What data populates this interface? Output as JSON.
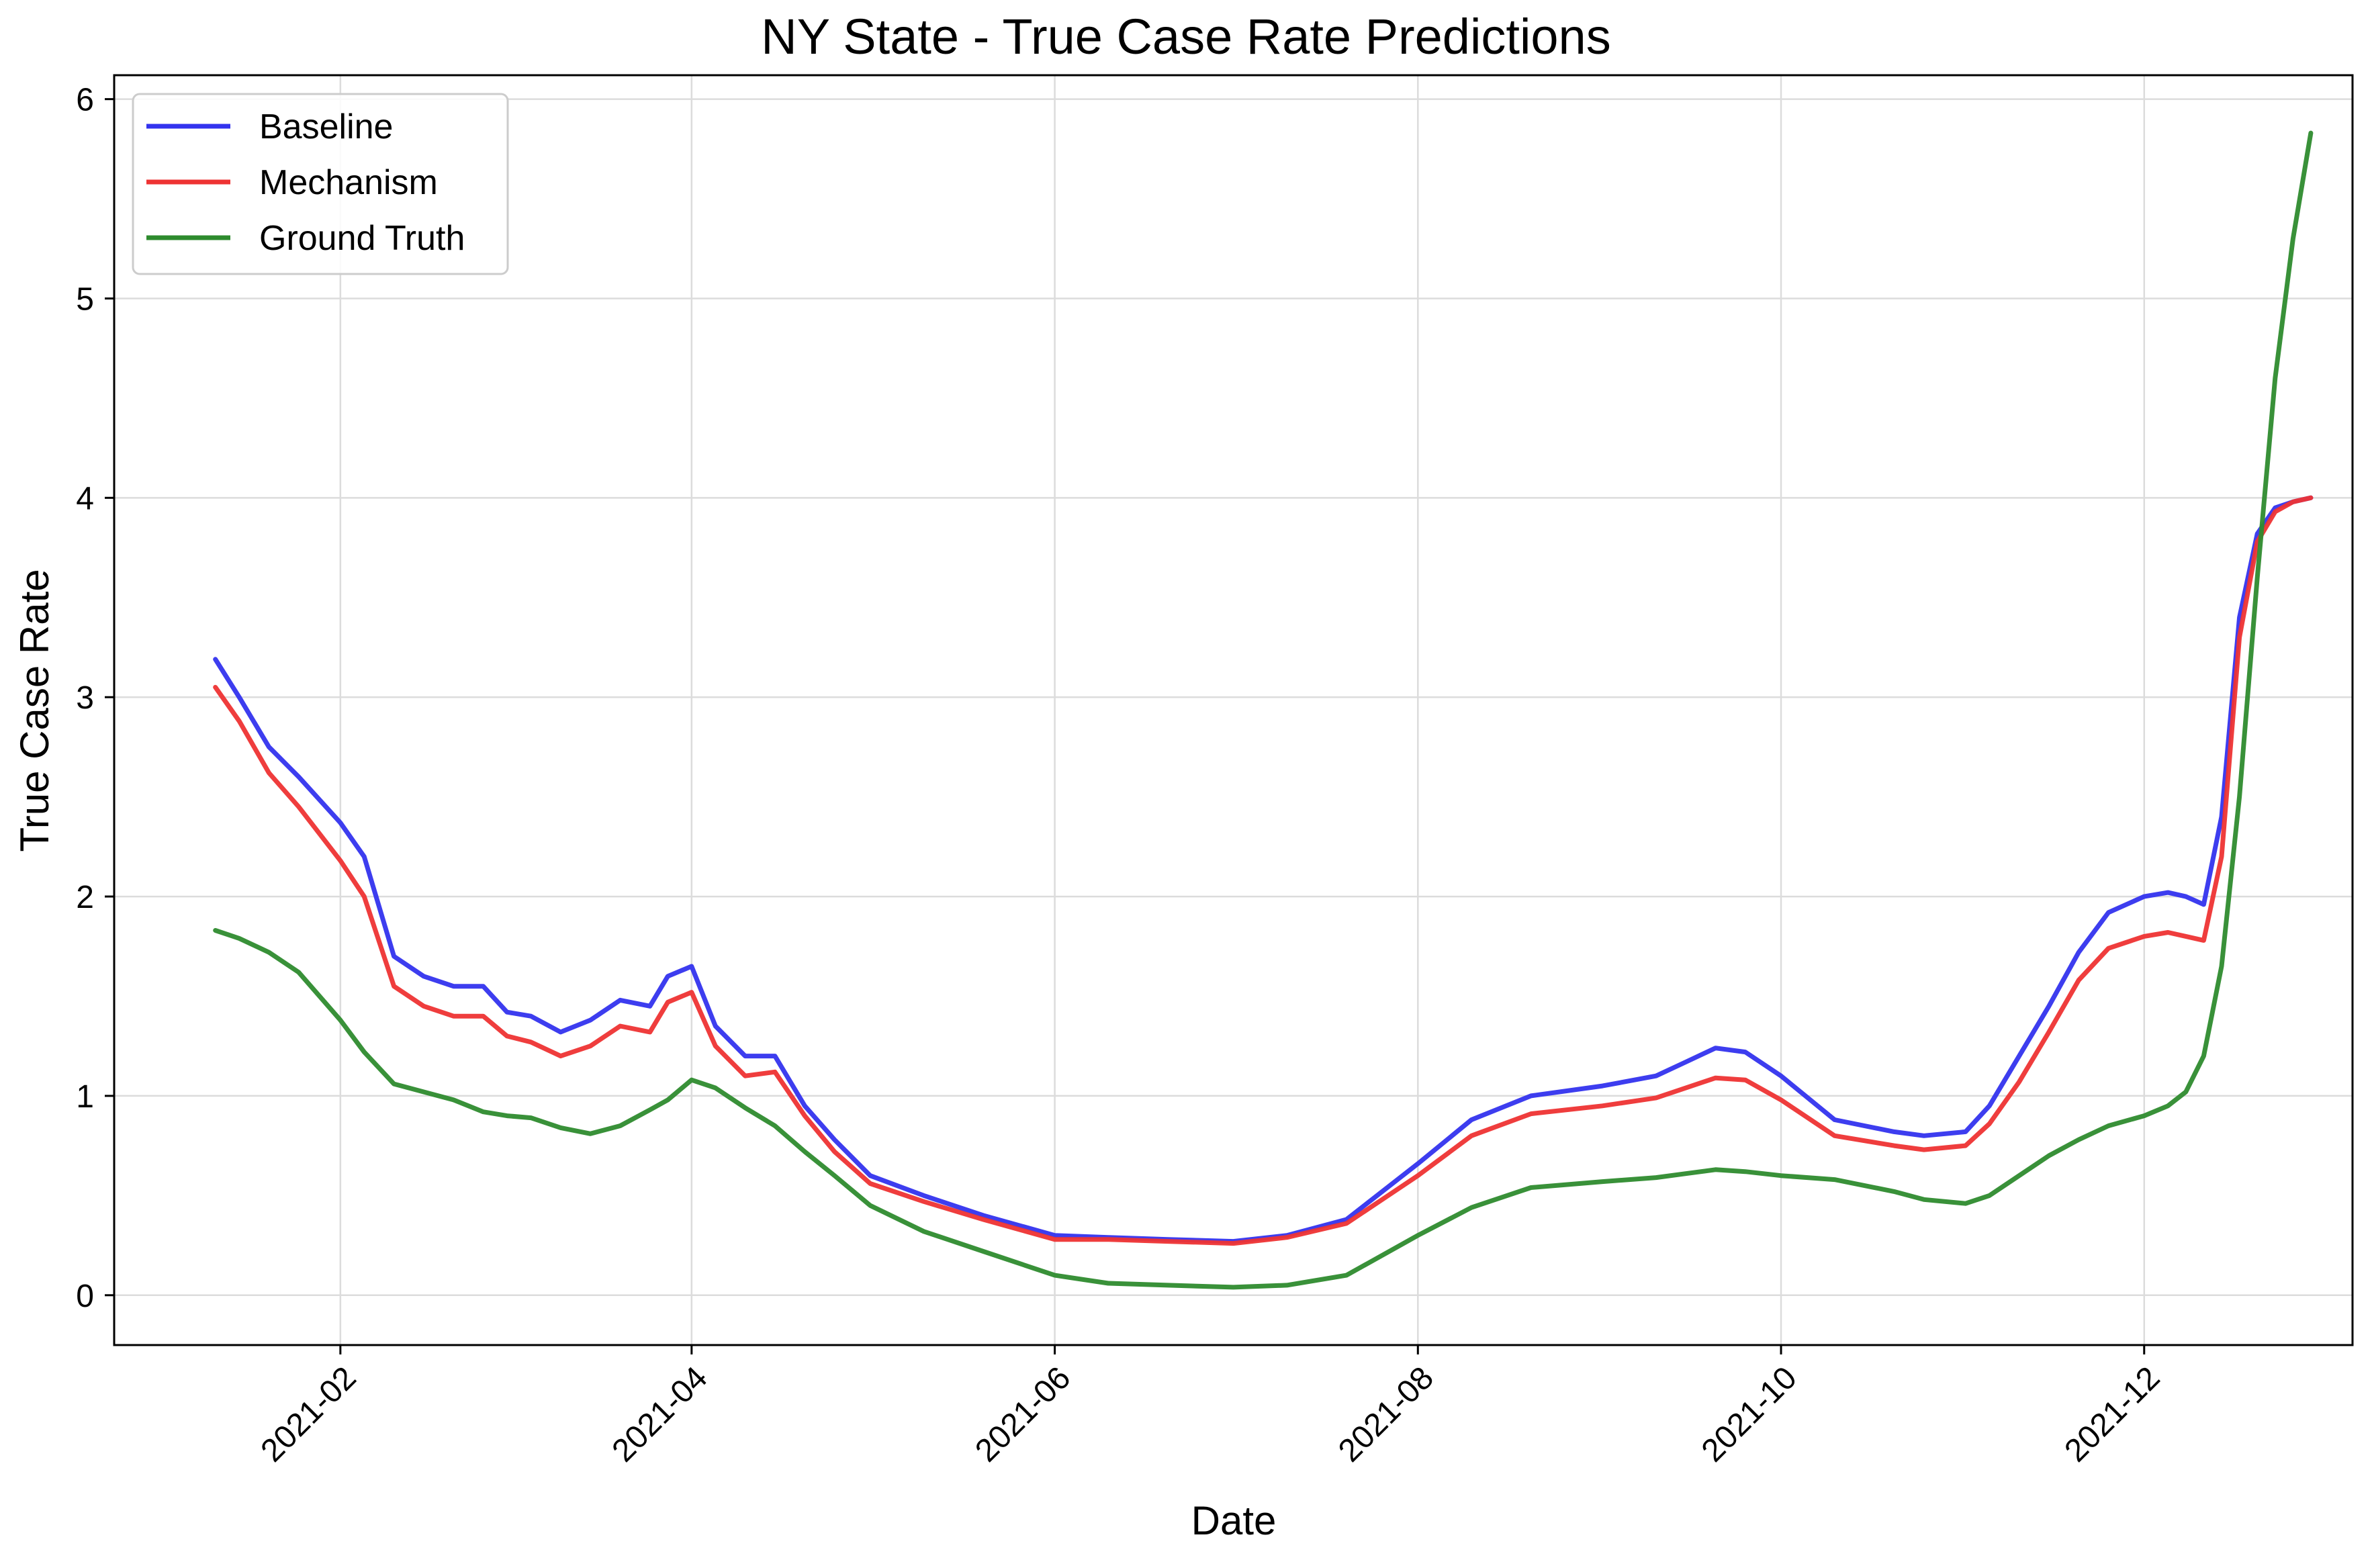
{
  "chart_data": {
    "type": "line",
    "title": "NY State - True Case Rate Predictions",
    "xlabel": "Date",
    "ylabel": "True Case Rate",
    "x_tick_labels": [
      "2021-02",
      "2021-04",
      "2021-06",
      "2021-08",
      "2021-10",
      "2021-12"
    ],
    "x_tick_dates": [
      "2021-02-01",
      "2021-04-01",
      "2021-06-01",
      "2021-08-01",
      "2021-10-01",
      "2021-12-01"
    ],
    "xlim": [
      "2020-12-25",
      "2022-01-05"
    ],
    "y_tick_labels": [
      "0",
      "1",
      "2",
      "3",
      "4",
      "5",
      "6"
    ],
    "y_ticks": [
      0,
      1,
      2,
      3,
      4,
      5,
      6
    ],
    "ylim": [
      -0.25,
      6.12
    ],
    "grid": true,
    "legend_position": "top-left",
    "x": [
      "2021-01-11",
      "2021-01-15",
      "2021-01-20",
      "2021-01-25",
      "2021-02-01",
      "2021-02-05",
      "2021-02-10",
      "2021-02-15",
      "2021-02-20",
      "2021-02-25",
      "2021-03-01",
      "2021-03-05",
      "2021-03-10",
      "2021-03-15",
      "2021-03-20",
      "2021-03-25",
      "2021-03-28",
      "2021-04-01",
      "2021-04-05",
      "2021-04-10",
      "2021-04-15",
      "2021-04-20",
      "2021-04-25",
      "2021-05-01",
      "2021-05-10",
      "2021-05-20",
      "2021-06-01",
      "2021-06-10",
      "2021-06-20",
      "2021-07-01",
      "2021-07-10",
      "2021-07-20",
      "2021-08-01",
      "2021-08-10",
      "2021-08-20",
      "2021-09-01",
      "2021-09-10",
      "2021-09-15",
      "2021-09-20",
      "2021-09-25",
      "2021-10-01",
      "2021-10-10",
      "2021-10-20",
      "2021-10-25",
      "2021-11-01",
      "2021-11-05",
      "2021-11-10",
      "2021-11-15",
      "2021-11-20",
      "2021-11-25",
      "2021-12-01",
      "2021-12-05",
      "2021-12-08",
      "2021-12-11",
      "2021-12-14",
      "2021-12-17",
      "2021-12-20",
      "2021-12-23",
      "2021-12-26",
      "2021-12-29"
    ],
    "series": [
      {
        "name": "Baseline",
        "color": "#3333ee",
        "values": [
          3.19,
          3.0,
          2.75,
          2.6,
          2.37,
          2.2,
          1.7,
          1.6,
          1.55,
          1.55,
          1.42,
          1.4,
          1.32,
          1.38,
          1.48,
          1.45,
          1.6,
          1.65,
          1.35,
          1.2,
          1.2,
          0.95,
          0.78,
          0.6,
          0.5,
          0.4,
          0.3,
          0.29,
          0.28,
          0.27,
          0.3,
          0.38,
          0.66,
          0.88,
          1.0,
          1.05,
          1.1,
          1.17,
          1.24,
          1.22,
          1.1,
          0.88,
          0.82,
          0.8,
          0.82,
          0.95,
          1.2,
          1.45,
          1.72,
          1.92,
          2.0,
          2.02,
          2.0,
          1.96,
          2.4,
          3.4,
          3.82,
          3.95,
          3.98,
          4.0
        ]
      },
      {
        "name": "Mechanism",
        "color": "#ee3333",
        "values": [
          3.05,
          2.88,
          2.62,
          2.45,
          2.18,
          2.0,
          1.55,
          1.45,
          1.4,
          1.4,
          1.3,
          1.27,
          1.2,
          1.25,
          1.35,
          1.32,
          1.47,
          1.52,
          1.25,
          1.1,
          1.12,
          0.9,
          0.72,
          0.56,
          0.47,
          0.38,
          0.28,
          0.28,
          0.27,
          0.26,
          0.29,
          0.36,
          0.6,
          0.8,
          0.91,
          0.95,
          0.99,
          1.04,
          1.09,
          1.08,
          0.98,
          0.8,
          0.75,
          0.73,
          0.75,
          0.86,
          1.07,
          1.32,
          1.58,
          1.74,
          1.8,
          1.82,
          1.8,
          1.78,
          2.2,
          3.3,
          3.78,
          3.93,
          3.98,
          4.0
        ]
      },
      {
        "name": "Ground Truth",
        "color": "#2e8b2e",
        "values": [
          1.83,
          1.79,
          1.72,
          1.62,
          1.38,
          1.22,
          1.06,
          1.02,
          0.98,
          0.92,
          0.9,
          0.89,
          0.84,
          0.81,
          0.85,
          0.93,
          0.98,
          1.08,
          1.04,
          0.94,
          0.85,
          0.72,
          0.6,
          0.45,
          0.32,
          0.22,
          0.1,
          0.06,
          0.05,
          0.04,
          0.05,
          0.1,
          0.3,
          0.44,
          0.54,
          0.57,
          0.59,
          0.61,
          0.63,
          0.62,
          0.6,
          0.58,
          0.52,
          0.48,
          0.46,
          0.5,
          0.6,
          0.7,
          0.78,
          0.85,
          0.9,
          0.95,
          1.02,
          1.2,
          1.65,
          2.5,
          3.6,
          4.6,
          5.3,
          5.83
        ]
      }
    ]
  }
}
